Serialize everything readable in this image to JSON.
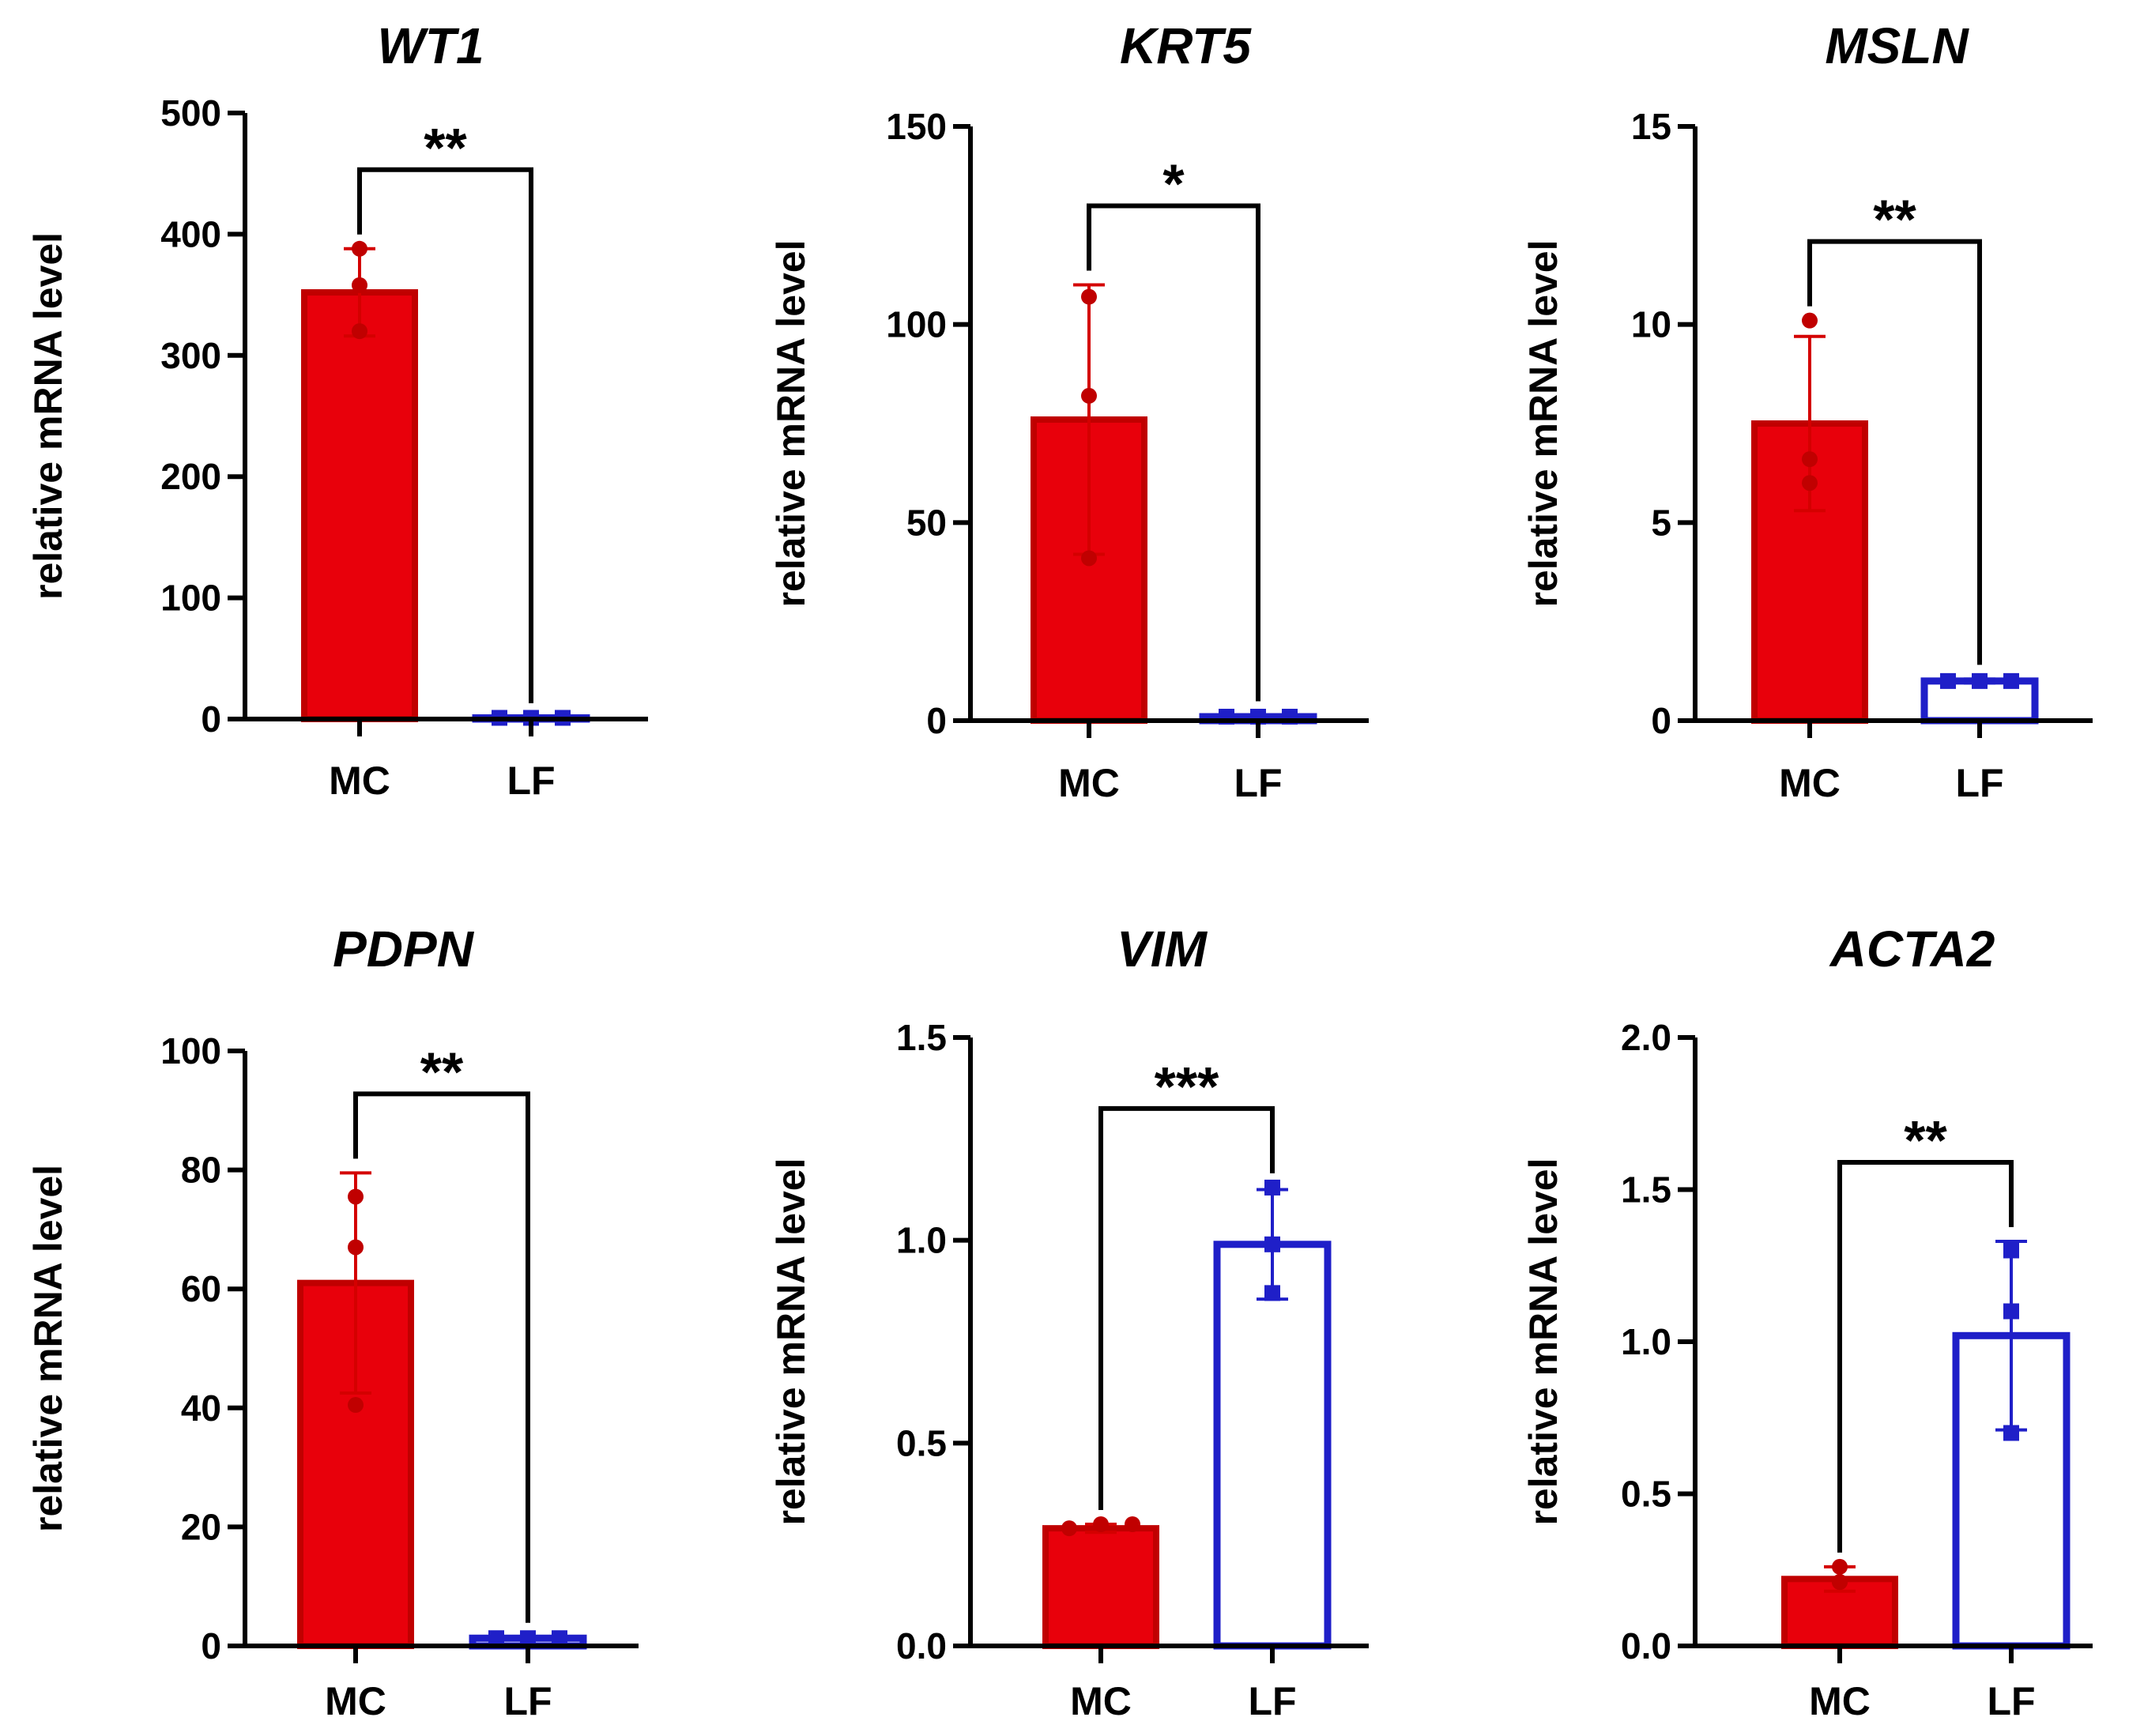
{
  "chart_data": [
    {
      "type": "bar",
      "title": "WT1",
      "ylabel": "relative mRNA level",
      "xlabel": "",
      "categories": [
        "MC",
        "LF"
      ],
      "ylim": [
        0,
        500
      ],
      "yticks": [
        0,
        100,
        200,
        300,
        400,
        500
      ],
      "ytick_labels": [
        "0",
        "100",
        "200",
        "300",
        "400",
        "500"
      ],
      "bar_style": [
        "filled",
        "outline"
      ],
      "series": [
        {
          "name": "MC",
          "mean": 352,
          "sd": 36,
          "points": [
            388,
            358,
            320
          ],
          "color": "#e8000b",
          "marker": "circle"
        },
        {
          "name": "LF",
          "mean": 1,
          "sd": 0.3,
          "points": [
            1,
            1,
            1
          ],
          "color": "#1f1fc8",
          "marker": "square"
        }
      ],
      "significance": "**"
    },
    {
      "type": "bar",
      "title": "KRT5",
      "ylabel": "relative mRNA level",
      "xlabel": "",
      "categories": [
        "MC",
        "LF"
      ],
      "ylim": [
        0,
        150
      ],
      "yticks": [
        0,
        50,
        100,
        150
      ],
      "ytick_labels": [
        "0",
        "50",
        "100",
        "150"
      ],
      "bar_style": [
        "filled",
        "outline"
      ],
      "series": [
        {
          "name": "MC",
          "mean": 76,
          "sd": 34,
          "points": [
            107,
            82,
            41
          ],
          "color": "#e8000b",
          "marker": "circle"
        },
        {
          "name": "LF",
          "mean": 1,
          "sd": 0.3,
          "points": [
            1,
            1,
            1
          ],
          "color": "#1f1fc8",
          "marker": "square"
        }
      ],
      "significance": "*"
    },
    {
      "type": "bar",
      "title": "MSLN",
      "ylabel": "relative mRNA level",
      "xlabel": "",
      "categories": [
        "MC",
        "LF"
      ],
      "ylim": [
        0,
        15
      ],
      "yticks": [
        0,
        5,
        10,
        15
      ],
      "ytick_labels": [
        "0",
        "5",
        "10",
        "15"
      ],
      "bar_style": [
        "filled",
        "outline"
      ],
      "series": [
        {
          "name": "MC",
          "mean": 7.5,
          "sd": 2.2,
          "points": [
            10.1,
            6.6,
            6.0
          ],
          "color": "#e8000b",
          "marker": "circle"
        },
        {
          "name": "LF",
          "mean": 1.0,
          "sd": 0.05,
          "points": [
            1.0,
            1.0,
            1.0
          ],
          "color": "#1f1fc8",
          "marker": "square"
        }
      ],
      "significance": "**"
    },
    {
      "type": "bar",
      "title": "PDPN",
      "ylabel": "relative mRNA level",
      "xlabel": "",
      "categories": [
        "MC",
        "LF"
      ],
      "ylim": [
        0,
        100
      ],
      "yticks": [
        0,
        20,
        40,
        60,
        80,
        100
      ],
      "ytick_labels": [
        "0",
        "20",
        "40",
        "60",
        "80",
        "100"
      ],
      "bar_style": [
        "filled",
        "outline"
      ],
      "series": [
        {
          "name": "MC",
          "mean": 61,
          "sd": 18.5,
          "points": [
            75.5,
            67,
            40.5
          ],
          "color": "#e8000b",
          "marker": "circle"
        },
        {
          "name": "LF",
          "mean": 1.3,
          "sd": 0.2,
          "points": [
            1.3,
            1.3,
            1.3
          ],
          "color": "#1f1fc8",
          "marker": "square"
        }
      ],
      "significance": "**"
    },
    {
      "type": "bar",
      "title": "VIM",
      "ylabel": "relative mRNA level",
      "xlabel": "",
      "categories": [
        "MC",
        "LF"
      ],
      "ylim": [
        0,
        1.5
      ],
      "yticks": [
        0,
        0.5,
        1.0,
        1.5
      ],
      "ytick_labels": [
        "0.0",
        "0.5",
        "1.0",
        "1.5"
      ],
      "bar_style": [
        "filled",
        "outline"
      ],
      "series": [
        {
          "name": "MC",
          "mean": 0.29,
          "sd": 0.01,
          "points": [
            0.29,
            0.3,
            0.3
          ],
          "color": "#e8000b",
          "marker": "circle"
        },
        {
          "name": "LF",
          "mean": 0.99,
          "sd": 0.135,
          "points": [
            1.13,
            0.99,
            0.87
          ],
          "color": "#1f1fc8",
          "marker": "square"
        }
      ],
      "significance": "***"
    },
    {
      "type": "bar",
      "title": "ACTA2",
      "ylabel": "relative mRNA level",
      "xlabel": "",
      "categories": [
        "MC",
        "LF"
      ],
      "ylim": [
        0,
        2.0
      ],
      "yticks": [
        0,
        0.5,
        1.0,
        1.5,
        2.0
      ],
      "ytick_labels": [
        "0.0",
        "0.5",
        "1.0",
        "1.5",
        "2.0"
      ],
      "bar_style": [
        "filled",
        "outline"
      ],
      "series": [
        {
          "name": "MC",
          "mean": 0.22,
          "sd": 0.04,
          "points": [
            0.26,
            0.21,
            0.21
          ],
          "color": "#e8000b",
          "marker": "circle"
        },
        {
          "name": "LF",
          "mean": 1.02,
          "sd": 0.31,
          "points": [
            1.3,
            1.1,
            0.7
          ],
          "color": "#1f1fc8",
          "marker": "square"
        }
      ],
      "significance": "**"
    }
  ]
}
